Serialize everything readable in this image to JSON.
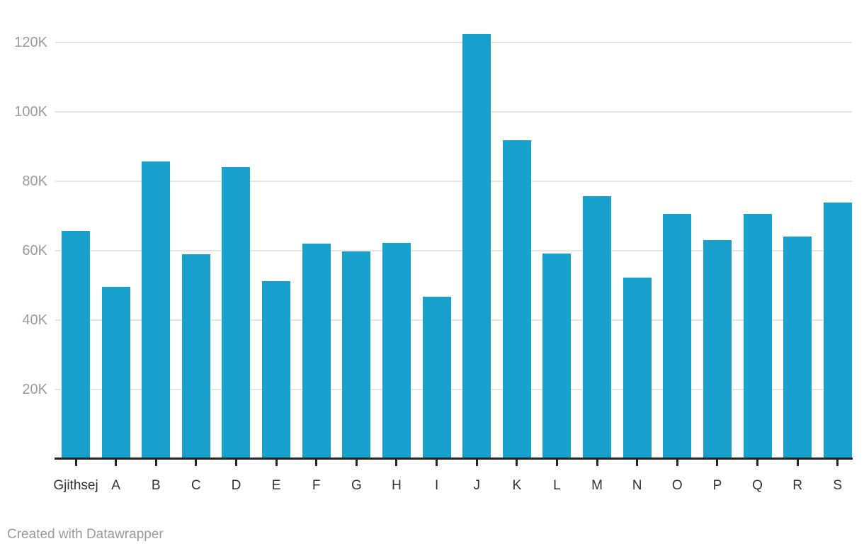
{
  "chart_data": {
    "type": "bar",
    "title": "",
    "categories": [
      "Gjithsej",
      "A",
      "B",
      "C",
      "D",
      "E",
      "F",
      "G",
      "H",
      "I",
      "J",
      "K",
      "L",
      "M",
      "N",
      "O",
      "P",
      "Q",
      "R",
      "S"
    ],
    "values": [
      65700,
      49400,
      85700,
      58900,
      83900,
      51100,
      62000,
      59600,
      62200,
      46700,
      122400,
      91800,
      59000,
      75600,
      52100,
      70600,
      62900,
      70500,
      63900,
      73700
    ],
    "xlabel": "",
    "ylabel": "",
    "ylim": [
      0,
      130000
    ],
    "y_ticks": [
      {
        "value": 20000,
        "label": "20K"
      },
      {
        "value": 40000,
        "label": "40K"
      },
      {
        "value": 60000,
        "label": "60K"
      },
      {
        "value": 80000,
        "label": "80K"
      },
      {
        "value": 100000,
        "label": "100K"
      },
      {
        "value": 120000,
        "label": "120K"
      }
    ],
    "grid": "horizontal-only",
    "legend": "none"
  },
  "colors": {
    "bar": "#18a1cd",
    "gridline": "#e6e6e6",
    "axis_line": "#242424",
    "tick_mark": "#242424",
    "y_label": "#9b9b9b",
    "x_label": "#333333",
    "footer": "#9b9b9b"
  },
  "footer": {
    "attribution": "Created with Datawrapper"
  }
}
